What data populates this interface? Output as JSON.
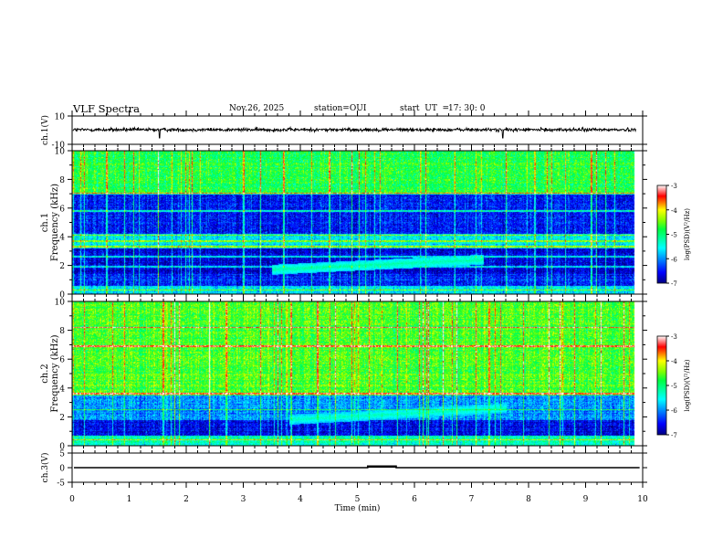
{
  "header": {
    "title": "VLF Spectra",
    "date": "Nov.26, 2025",
    "station": "station=OUI",
    "start_label": "start  UT  =",
    "start_time": "17: 30: 0"
  },
  "chart_data": {
    "type": "spectrogram",
    "xlabel": "Time  (min)",
    "xlim": [
      0,
      10
    ],
    "x_ticks": [
      "0",
      "1",
      "2",
      "3",
      "4",
      "5",
      "6",
      "7",
      "8",
      "9",
      "10"
    ],
    "panels": [
      {
        "id": "ch1_waveform",
        "type": "line",
        "ylabel": "ch.1(V)",
        "ylim": [
          -10,
          10
        ],
        "y_ticks": [
          "10",
          "-10"
        ],
        "baseline": 0.3,
        "noise_amplitude": 1.2,
        "spikes_at_min": [
          1.53,
          7.55
        ]
      },
      {
        "id": "ch1_spectrogram",
        "type": "heatmap",
        "ylabel_top": "ch.1",
        "ylabel": "Frequency  (kHz)",
        "ylim": [
          0,
          10
        ],
        "y_ticks": [
          "0",
          "2",
          "4",
          "6",
          "8",
          "10"
        ],
        "data_xlim": [
          0,
          9.85
        ],
        "colorbar": {
          "label": "log(PSD)(V²/Hz)",
          "range": [
            -7,
            -3
          ],
          "ticks": [
            "-3",
            "-4",
            "-5",
            "-6",
            "-7"
          ]
        },
        "bands_khz": [
          {
            "from": 0.0,
            "to": 0.6,
            "log_psd": -5.6
          },
          {
            "from": 0.6,
            "to": 1.4,
            "log_psd": -6.4
          },
          {
            "from": 1.4,
            "to": 3.2,
            "log_psd": -6.7
          },
          {
            "from": 3.2,
            "to": 4.2,
            "log_psd": -5.6
          },
          {
            "from": 4.2,
            "to": 7.0,
            "log_psd": -6.5
          },
          {
            "from": 7.0,
            "to": 10.0,
            "log_psd": -4.8
          }
        ],
        "features": [
          {
            "name": "drifting emission",
            "t_start": 3.5,
            "t_end": 7.2,
            "f_start": 1.7,
            "f_end": 2.4,
            "log_psd": -5.2
          }
        ],
        "lines_khz": [
          0.3,
          1.9,
          2.6,
          3.3,
          3.7,
          4.1,
          5.8,
          7.0
        ],
        "impulses_min": [
          0.6,
          1.5,
          2.1,
          3.0,
          3.7,
          4.5,
          5.3,
          6.1,
          6.7,
          7.6,
          8.1,
          9.1
        ]
      },
      {
        "id": "ch2_spectrogram",
        "type": "heatmap",
        "ylabel_top": "ch.2",
        "ylabel": "Frequency  (kHz)",
        "ylim": [
          0,
          10
        ],
        "y_ticks": [
          "0",
          "2",
          "4",
          "6",
          "8",
          "10"
        ],
        "data_xlim": [
          0,
          9.85
        ],
        "colorbar": {
          "label": "log(PSD)(V²/Hz)",
          "range": [
            -7,
            -3
          ],
          "ticks": [
            "-3",
            "-4",
            "-5",
            "-6",
            "-7"
          ]
        },
        "bands_khz": [
          {
            "from": 0.0,
            "to": 0.7,
            "log_psd": -5.3
          },
          {
            "from": 0.7,
            "to": 1.8,
            "log_psd": -6.6
          },
          {
            "from": 1.8,
            "to": 3.5,
            "log_psd": -6.0
          },
          {
            "from": 3.5,
            "to": 10.0,
            "log_psd": -4.6
          }
        ],
        "features": [
          {
            "name": "drifting emission",
            "t_start": 3.8,
            "t_end": 7.6,
            "f_start": 1.8,
            "f_end": 2.6,
            "log_psd": -5.3
          }
        ],
        "lines_khz": [
          0.4,
          2.5,
          3.6,
          6.9,
          8.2
        ],
        "impulses_min": [
          0.7,
          1.6,
          2.4,
          3.3,
          3.6,
          4.3,
          5.2,
          5.7,
          6.5,
          7.3,
          7.9,
          8.8
        ]
      },
      {
        "id": "ch3_waveform",
        "type": "line",
        "ylabel": "ch.3(V)",
        "ylim": [
          -5,
          5
        ],
        "y_ticks": [
          "5",
          "0",
          "-5"
        ],
        "baseline": 0.0,
        "step": {
          "t_start": 5.18,
          "t_end": 5.68,
          "value": 0.55
        }
      }
    ]
  }
}
